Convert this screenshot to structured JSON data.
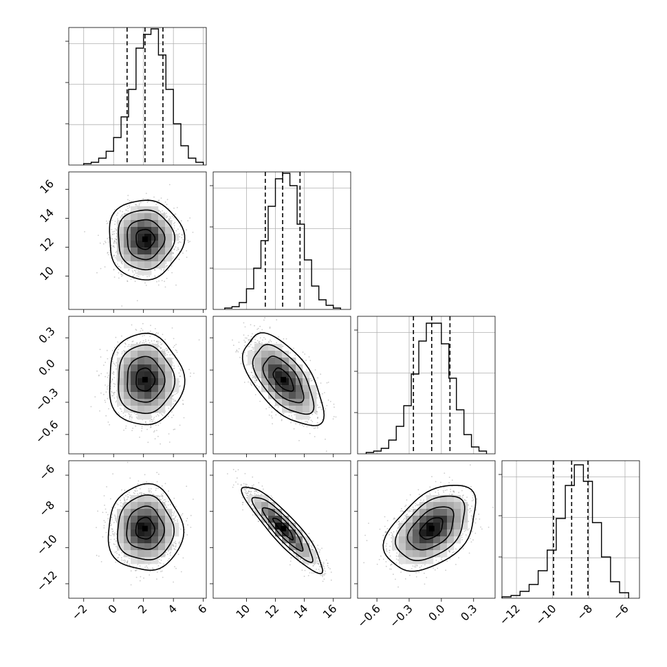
{
  "chart_data": {
    "type": "corner",
    "description": "corner plot of 4 parameters: diagonal 1D histograms with 16/50/84 percentile dashed lines, off-diagonal 2D histograms with contours and scatter",
    "grid": true,
    "parameters": [
      {
        "range": [
          -3,
          6.2
        ],
        "ticks": [
          "-2",
          "0",
          "2",
          "4",
          "6"
        ],
        "tick_values": [
          -2,
          0,
          2,
          4,
          6
        ],
        "mean": 2.1,
        "std": 1.0,
        "quantiles": [
          0.9,
          2.1,
          3.3
        ],
        "label": ""
      },
      {
        "range": [
          7.7,
          17.2
        ],
        "ticks": [
          "10",
          "12",
          "14",
          "16"
        ],
        "tick_values": [
          10,
          12,
          14,
          16
        ],
        "mean": 12.55,
        "std": 1.1,
        "quantiles": [
          11.3,
          12.5,
          13.7
        ],
        "label": ""
      },
      {
        "range": [
          -0.78,
          0.5
        ],
        "ticks": [
          "-0.6",
          "-0.3",
          "0.0",
          "0.3"
        ],
        "tick_values": [
          -0.6,
          -0.3,
          0.0,
          0.3
        ],
        "mean": -0.09,
        "std": 0.17,
        "quantiles": [
          -0.26,
          -0.09,
          0.08
        ],
        "label": ""
      },
      {
        "range": [
          -12.8,
          -5.2
        ],
        "ticks": [
          "-12",
          "-10",
          "-8",
          "-6"
        ],
        "tick_values": [
          -12,
          -10,
          -8,
          -6
        ],
        "mean": -8.95,
        "std": 0.95,
        "quantiles": [
          -9.95,
          -8.95,
          -8.05
        ],
        "label": ""
      }
    ],
    "correlations": [
      {
        "pair": [
          0,
          1
        ],
        "rho": 0.0
      },
      {
        "pair": [
          0,
          2
        ],
        "rho": 0.0
      },
      {
        "pair": [
          1,
          2
        ],
        "rho": -0.6
      },
      {
        "pair": [
          0,
          3
        ],
        "rho": 0.0
      },
      {
        "pair": [
          1,
          3
        ],
        "rho": -0.9
      },
      {
        "pair": [
          2,
          3
        ],
        "rho": 0.45
      }
    ],
    "histograms": [
      {
        "param": 0,
        "bin_edges": [
          -2.0,
          -1.5,
          -1.0,
          -0.5,
          0.0,
          0.5,
          1.0,
          1.5,
          2.0,
          2.5,
          3.0,
          3.5,
          4.0,
          4.5,
          5.0,
          5.5,
          6.0
        ],
        "counts": [
          0.01,
          0.02,
          0.05,
          0.1,
          0.2,
          0.35,
          0.55,
          0.85,
          0.95,
          0.99,
          0.8,
          0.55,
          0.3,
          0.14,
          0.05,
          0.02
        ]
      },
      {
        "param": 1,
        "bin_edges": [
          8.5,
          9.0,
          9.5,
          10.0,
          10.5,
          11.0,
          11.5,
          12.0,
          12.5,
          13.0,
          13.5,
          14.0,
          14.5,
          15.0,
          15.5,
          16.0,
          16.5
        ],
        "counts": [
          0.01,
          0.02,
          0.05,
          0.15,
          0.3,
          0.5,
          0.75,
          0.95,
          0.99,
          0.9,
          0.62,
          0.36,
          0.17,
          0.07,
          0.03,
          0.01
        ]
      },
      {
        "param": 2,
        "bin_edges": [
          -0.7,
          -0.63,
          -0.56,
          -0.49,
          -0.42,
          -0.35,
          -0.28,
          -0.21,
          -0.14,
          -0.07,
          0.0,
          0.07,
          0.14,
          0.21,
          0.28,
          0.35,
          0.42
        ],
        "counts": [
          0.01,
          0.02,
          0.04,
          0.1,
          0.2,
          0.35,
          0.58,
          0.82,
          0.95,
          0.95,
          0.8,
          0.55,
          0.32,
          0.14,
          0.05,
          0.02
        ]
      },
      {
        "param": 3,
        "bin_edges": [
          -12.8,
          -12.3,
          -11.8,
          -11.3,
          -10.8,
          -10.3,
          -9.8,
          -9.3,
          -8.8,
          -8.3,
          -7.8,
          -7.3,
          -6.8,
          -6.3,
          -5.8
        ],
        "counts": [
          0.01,
          0.02,
          0.05,
          0.1,
          0.2,
          0.35,
          0.58,
          0.82,
          0.97,
          0.85,
          0.55,
          0.3,
          0.12,
          0.04
        ]
      }
    ],
    "contour_levels_sigma": [
      0.5,
      1.0,
      1.5,
      2.0
    ]
  }
}
